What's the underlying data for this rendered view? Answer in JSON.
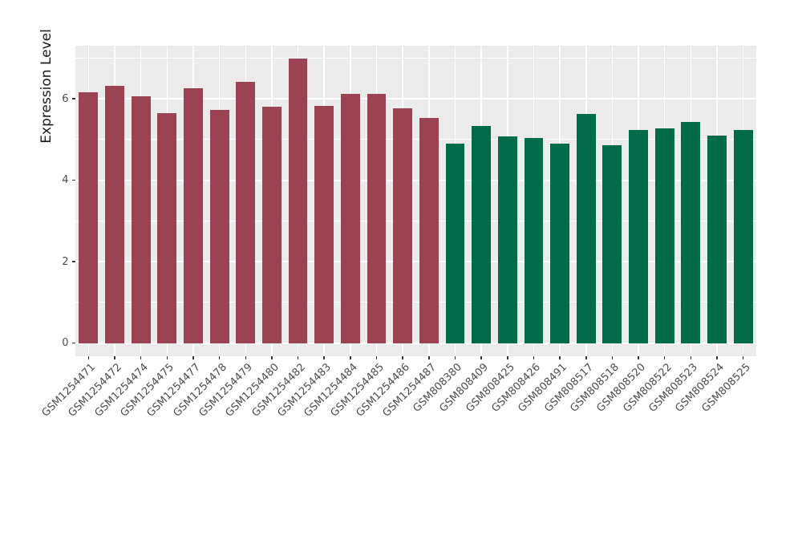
{
  "chart_data": {
    "type": "bar",
    "title": "",
    "xlabel": "",
    "ylabel": "Expression Level",
    "legend_position": "none",
    "grid": "on",
    "panel_background": "#EBEBEB",
    "gridline_color": "#FFFFFF",
    "axis_text_color": "#4D4D4D",
    "tick_color": "#333333",
    "y_ticks": [
      0,
      2,
      4,
      6
    ],
    "y_minor_gridlines": [
      1,
      3,
      5,
      7
    ],
    "ylim": [
      0,
      7.3
    ],
    "categories": [
      "GSM1254471",
      "GSM1254472",
      "GSM1254474",
      "GSM1254475",
      "GSM1254477",
      "GSM1254478",
      "GSM1254479",
      "GSM1254480",
      "GSM1254482",
      "GSM1254483",
      "GSM1254484",
      "GSM1254485",
      "GSM1254486",
      "GSM1254487",
      "GSM808380",
      "GSM808409",
      "GSM808425",
      "GSM808426",
      "GSM808491",
      "GSM808517",
      "GSM808518",
      "GSM808520",
      "GSM808522",
      "GSM808523",
      "GSM808524",
      "GSM808525"
    ],
    "values": [
      6.15,
      6.32,
      6.06,
      5.65,
      6.25,
      5.72,
      6.41,
      5.8,
      6.98,
      5.83,
      6.11,
      6.11,
      5.77,
      5.53,
      4.9,
      5.34,
      5.08,
      5.04,
      4.9,
      5.62,
      4.85,
      5.24,
      5.28,
      5.42,
      5.1,
      5.23
    ],
    "bar_group_index": [
      0,
      0,
      0,
      0,
      0,
      0,
      0,
      0,
      0,
      0,
      0,
      0,
      0,
      0,
      1,
      1,
      1,
      1,
      1,
      1,
      1,
      1,
      1,
      1,
      1,
      1
    ],
    "group_colors": [
      "#9B4352",
      "#006B48"
    ]
  }
}
